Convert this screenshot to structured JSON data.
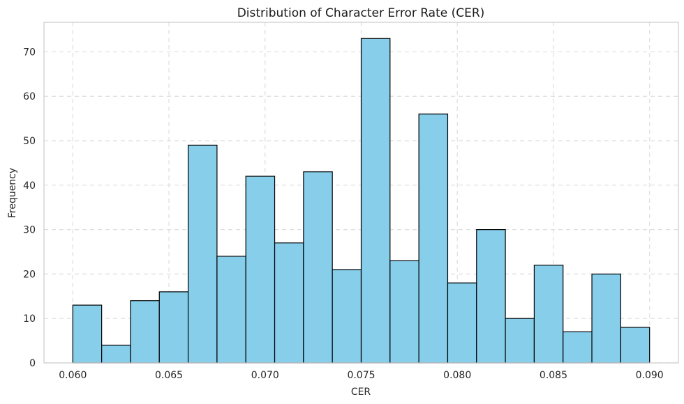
{
  "chart_data": {
    "type": "bar",
    "title": "Distribution of Character Error Rate (CER)",
    "xlabel": "CER",
    "ylabel": "Frequency",
    "bin_edges": [
      0.06,
      0.0615,
      0.063,
      0.0645,
      0.066,
      0.0675,
      0.069,
      0.0705,
      0.072,
      0.0735,
      0.075,
      0.0765,
      0.078,
      0.0795,
      0.081,
      0.0825,
      0.084,
      0.0855,
      0.087,
      0.0885,
      0.09
    ],
    "values": [
      13,
      4,
      14,
      16,
      49,
      24,
      42,
      27,
      43,
      21,
      73,
      23,
      56,
      18,
      30,
      10,
      22,
      7,
      20,
      8
    ],
    "xticks": [
      0.06,
      0.065,
      0.07,
      0.075,
      0.08,
      0.085,
      0.09
    ],
    "xtick_labels": [
      "0.060",
      "0.065",
      "0.070",
      "0.075",
      "0.080",
      "0.085",
      "0.090"
    ],
    "yticks": [
      0,
      10,
      20,
      30,
      40,
      50,
      60,
      70
    ],
    "ytick_labels": [
      "0",
      "10",
      "20",
      "30",
      "40",
      "50",
      "60",
      "70"
    ],
    "xlim": [
      0.0585,
      0.0915
    ],
    "ylim": [
      0,
      76.65
    ],
    "grid": true,
    "bar_color": "#87CEEB",
    "edge_color": "#000000"
  }
}
